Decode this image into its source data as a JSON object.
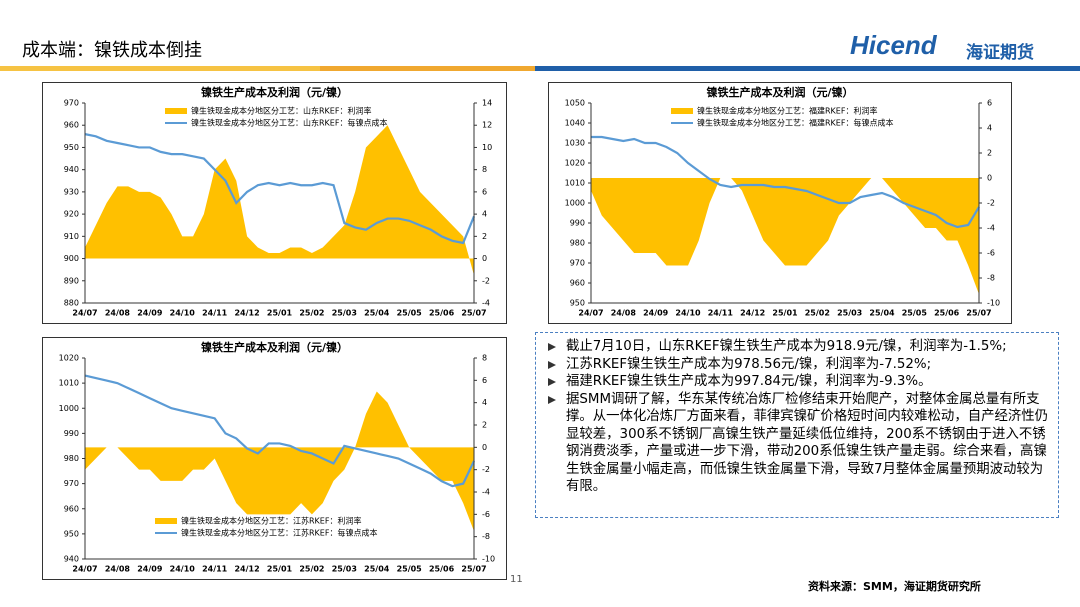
{
  "header": {
    "title": "成本端：镍铁成本倒挂",
    "logo": "Hicend",
    "logo_cn": "海证期货"
  },
  "chart_data": [
    {
      "type": "area-line",
      "title": "镍铁生产成本及利润（元/镍）",
      "legend": "top",
      "categories": [
        "24/07",
        null,
        null,
        "24/08",
        null,
        null,
        "24/09",
        null,
        null,
        "24/10",
        null,
        null,
        "24/11",
        null,
        null,
        "24/12",
        null,
        null,
        "25/01",
        null,
        null,
        "25/02",
        null,
        null,
        "25/03",
        null,
        null,
        "25/04",
        null,
        null,
        "25/05",
        null,
        null,
        "25/06",
        null,
        null,
        "25/07"
      ],
      "ylim": [
        880,
        970
      ],
      "yticks": [
        880,
        890,
        900,
        910,
        920,
        930,
        940,
        950,
        960,
        970
      ],
      "y2lim": [
        -4,
        14
      ],
      "y2ticks": [
        -4,
        -2,
        0,
        2,
        4,
        6,
        8,
        10,
        12,
        14
      ],
      "series": [
        {
          "name": "镍生铁现金成本分地区分工艺：山东RKEF：利润率",
          "color": "#FFC000",
          "axis": "y2",
          "values": [
            1,
            3,
            5,
            6.5,
            6.5,
            6,
            6,
            5.5,
            4,
            2,
            2,
            4,
            8,
            9,
            7,
            2,
            1,
            0.5,
            0.5,
            1,
            1,
            0.5,
            1,
            2,
            3,
            6,
            10,
            11,
            12,
            10,
            8,
            6,
            5,
            4,
            3,
            2,
            -1.5
          ]
        },
        {
          "name": "镍生铁现金成本分地区分工艺：山东RKEF：每镍点成本",
          "color": "#5B9BD5",
          "values": [
            956,
            955,
            953,
            952,
            951,
            950,
            950,
            948,
            947,
            947,
            946,
            945,
            940,
            935,
            925,
            930,
            933,
            934,
            933,
            934,
            933,
            933,
            934,
            933,
            916,
            914,
            913,
            916,
            918,
            918,
            917,
            915,
            913,
            910,
            908,
            907,
            919
          ]
        }
      ]
    },
    {
      "type": "area-line",
      "title": "镍铁生产成本及利润（元/镍）",
      "legend": "top",
      "categories": [
        "24/07",
        null,
        null,
        "24/08",
        null,
        null,
        "24/09",
        null,
        null,
        "24/10",
        null,
        null,
        "24/11",
        null,
        null,
        "24/12",
        null,
        null,
        "25/01",
        null,
        null,
        "25/02",
        null,
        null,
        "25/03",
        null,
        null,
        "25/04",
        null,
        null,
        "25/05",
        null,
        null,
        "25/06",
        null,
        null,
        "25/07"
      ],
      "ylim": [
        950,
        1050
      ],
      "yticks": [
        950,
        960,
        970,
        980,
        990,
        1000,
        1010,
        1020,
        1030,
        1040,
        1050
      ],
      "y2lim": [
        -10,
        6
      ],
      "y2ticks": [
        -10,
        -8,
        -6,
        -4,
        -2,
        0,
        2,
        4,
        6
      ],
      "series": [
        {
          "name": "镍生铁现金成本分地区分工艺：福建RKEF：利润率",
          "color": "#FFC000",
          "axis": "y2",
          "values": [
            -1,
            -3,
            -4,
            -5,
            -6,
            -6,
            -6,
            -7,
            -7,
            -7,
            -5,
            -2,
            0,
            0,
            -1,
            -3,
            -5,
            -6,
            -7,
            -7,
            -7,
            -6,
            -5,
            -3,
            -2,
            -1,
            0,
            0,
            -1,
            -2,
            -3,
            -4,
            -4,
            -5,
            -5,
            -7,
            -9.3
          ]
        },
        {
          "name": "镍生铁现金成本分地区分工艺：福建RKEF：每镍点成本",
          "color": "#5B9BD5",
          "values": [
            1033,
            1033,
            1032,
            1031,
            1032,
            1030,
            1030,
            1028,
            1025,
            1020,
            1016,
            1012,
            1009,
            1008,
            1009,
            1009,
            1009,
            1008,
            1008,
            1007,
            1006,
            1004,
            1002,
            1000,
            1000,
            1003,
            1004,
            1005,
            1003,
            1000,
            998,
            996,
            994,
            990,
            988,
            989,
            998
          ]
        }
      ]
    },
    {
      "type": "area-line",
      "title": "镍铁生产成本及利润（元/镍）",
      "legend": "bottom-left",
      "categories": [
        "24/07",
        null,
        null,
        "24/08",
        null,
        null,
        "24/09",
        null,
        null,
        "24/10",
        null,
        null,
        "24/11",
        null,
        null,
        "24/12",
        null,
        null,
        "25/01",
        null,
        null,
        "25/02",
        null,
        null,
        "25/03",
        null,
        null,
        "25/04",
        null,
        null,
        "25/05",
        null,
        null,
        "25/06",
        null,
        null,
        "25/07"
      ],
      "ylim": [
        940,
        1020
      ],
      "yticks": [
        940,
        950,
        960,
        970,
        980,
        990,
        1000,
        1010,
        1020
      ],
      "y2lim": [
        -10,
        8
      ],
      "y2ticks": [
        -10,
        -8,
        -6,
        -4,
        -2,
        0,
        2,
        4,
        6,
        8
      ],
      "series": [
        {
          "name": "镍生铁现金成本分地区分工艺：江苏RKEF：利润率",
          "color": "#FFC000",
          "axis": "y2",
          "values": [
            -2,
            -1,
            0,
            0,
            -1,
            -2,
            -2,
            -3,
            -3,
            -3,
            -2,
            -2,
            -1,
            -3,
            -5,
            -6,
            -6,
            -6,
            -6,
            -6,
            -5,
            -6,
            -5,
            -3,
            -2,
            0,
            3,
            5,
            4,
            2,
            0,
            -1,
            -2,
            -3,
            -3,
            -5,
            -7.5
          ]
        },
        {
          "name": "镍生铁现金成本分地区分工艺：江苏RKEF：每镍点成本",
          "color": "#5B9BD5",
          "values": [
            1013,
            1012,
            1011,
            1010,
            1008,
            1006,
            1004,
            1002,
            1000,
            999,
            998,
            997,
            996,
            990,
            988,
            984,
            982,
            986,
            986,
            985,
            983,
            982,
            980,
            978,
            985,
            984,
            983,
            982,
            981,
            980,
            978,
            976,
            974,
            971,
            969,
            970,
            979
          ]
        }
      ]
    }
  ],
  "notes": [
    "截止7月10日，山东RKEF镍生铁生产成本为918.9元/镍，利润率为-1.5%;",
    "江苏RKEF镍生铁生产成本为978.56元/镍，利润率为-7.52%;",
    "福建RKEF镍生铁生产成本为997.84元/镍，利润率为-9.3%。",
    "据SMM调研了解，华东某传统冶炼厂检修结束开始爬产，对整体金属总量有所支撑。从一体化冶炼厂方面来看，菲律宾镍矿价格短时间内较难松动，自产经济性仍显较差，300系不锈钢厂高镍生铁产量延续低位维持，200系不锈钢由于进入不锈钢消费淡季，产量或进一步下滑，带动200系低镍生铁产量走弱。综合来看，高镍生铁金属量小幅走高，而低镍生铁金属量下滑，导致7月整体金属量预期波动较为有限。"
  ],
  "page": "11",
  "source": "资料来源：SMM，海证期货研究所"
}
